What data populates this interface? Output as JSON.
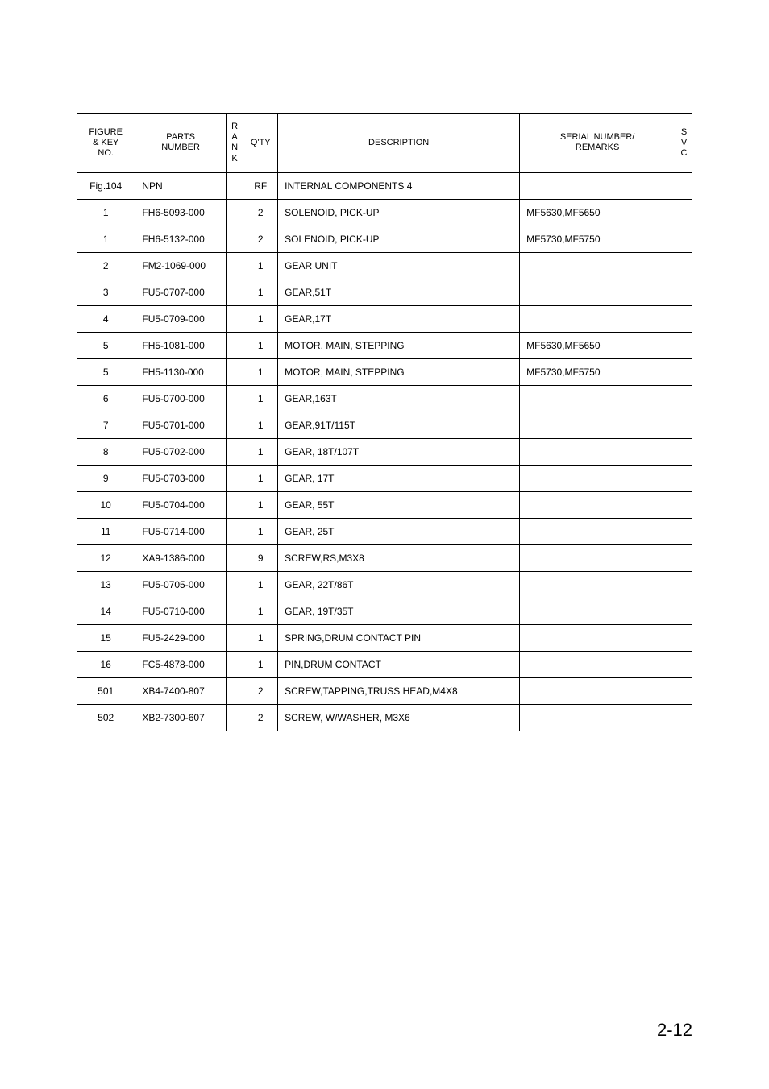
{
  "headers": {
    "figure": "FIGURE\n& KEY\nNO.",
    "parts": "PARTS\nNUMBER",
    "rank": "R\nA\nN\nK",
    "qty": "Q'TY",
    "description": "DESCRIPTION",
    "serial": "SERIAL NUMBER/\nREMARKS",
    "svc": "S\nV\nC"
  },
  "rows": [
    {
      "figure": "Fig.104",
      "parts": "NPN",
      "rank": "",
      "qty": "RF",
      "description": "INTERNAL COMPONENTS 4",
      "serial": "",
      "svc": ""
    },
    {
      "figure": "1",
      "parts": "FH6-5093-000",
      "rank": "",
      "qty": "2",
      "description": "SOLENOID, PICK-UP",
      "serial": "MF5630,MF5650",
      "svc": ""
    },
    {
      "figure": "1",
      "parts": "FH6-5132-000",
      "rank": "",
      "qty": "2",
      "description": "SOLENOID, PICK-UP",
      "serial": "MF5730,MF5750",
      "svc": ""
    },
    {
      "figure": "2",
      "parts": "FM2-1069-000",
      "rank": "",
      "qty": "1",
      "description": "GEAR UNIT",
      "serial": "",
      "svc": ""
    },
    {
      "figure": "3",
      "parts": "FU5-0707-000",
      "rank": "",
      "qty": "1",
      "description": "GEAR,51T",
      "serial": "",
      "svc": ""
    },
    {
      "figure": "4",
      "parts": "FU5-0709-000",
      "rank": "",
      "qty": "1",
      "description": "GEAR,17T",
      "serial": "",
      "svc": ""
    },
    {
      "figure": "5",
      "parts": "FH5-1081-000",
      "rank": "",
      "qty": "1",
      "description": "MOTOR, MAIN, STEPPING",
      "serial": "MF5630,MF5650",
      "svc": ""
    },
    {
      "figure": "5",
      "parts": "FH5-1130-000",
      "rank": "",
      "qty": "1",
      "description": "MOTOR, MAIN, STEPPING",
      "serial": "MF5730,MF5750",
      "svc": ""
    },
    {
      "figure": "6",
      "parts": "FU5-0700-000",
      "rank": "",
      "qty": "1",
      "description": "GEAR,163T",
      "serial": "",
      "svc": ""
    },
    {
      "figure": "7",
      "parts": "FU5-0701-000",
      "rank": "",
      "qty": "1",
      "description": "GEAR,91T/115T",
      "serial": "",
      "svc": ""
    },
    {
      "figure": "8",
      "parts": "FU5-0702-000",
      "rank": "",
      "qty": "1",
      "description": "GEAR, 18T/107T",
      "serial": "",
      "svc": ""
    },
    {
      "figure": "9",
      "parts": "FU5-0703-000",
      "rank": "",
      "qty": "1",
      "description": "GEAR, 17T",
      "serial": "",
      "svc": ""
    },
    {
      "figure": "10",
      "parts": "FU5-0704-000",
      "rank": "",
      "qty": "1",
      "description": "GEAR, 55T",
      "serial": "",
      "svc": ""
    },
    {
      "figure": "11",
      "parts": "FU5-0714-000",
      "rank": "",
      "qty": "1",
      "description": "GEAR, 25T",
      "serial": "",
      "svc": ""
    },
    {
      "figure": "12",
      "parts": "XA9-1386-000",
      "rank": "",
      "qty": "9",
      "description": "SCREW,RS,M3X8",
      "serial": "",
      "svc": ""
    },
    {
      "figure": "13",
      "parts": "FU5-0705-000",
      "rank": "",
      "qty": "1",
      "description": "GEAR, 22T/86T",
      "serial": "",
      "svc": ""
    },
    {
      "figure": "14",
      "parts": "FU5-0710-000",
      "rank": "",
      "qty": "1",
      "description": "GEAR, 19T/35T",
      "serial": "",
      "svc": ""
    },
    {
      "figure": "15",
      "parts": "FU5-2429-000",
      "rank": "",
      "qty": "1",
      "description": "SPRING,DRUM CONTACT PIN",
      "serial": "",
      "svc": ""
    },
    {
      "figure": "16",
      "parts": "FC5-4878-000",
      "rank": "",
      "qty": "1",
      "description": "PIN,DRUM CONTACT",
      "serial": "",
      "svc": ""
    },
    {
      "figure": "501",
      "parts": "XB4-7400-807",
      "rank": "",
      "qty": "2",
      "description": "SCREW,TAPPING,TRUSS HEAD,M4X8",
      "serial": "",
      "svc": ""
    },
    {
      "figure": "502",
      "parts": "XB2-7300-607",
      "rank": "",
      "qty": "2",
      "description": "SCREW, W/WASHER, M3X6",
      "serial": "",
      "svc": ""
    }
  ],
  "pageNumber": "2-12"
}
